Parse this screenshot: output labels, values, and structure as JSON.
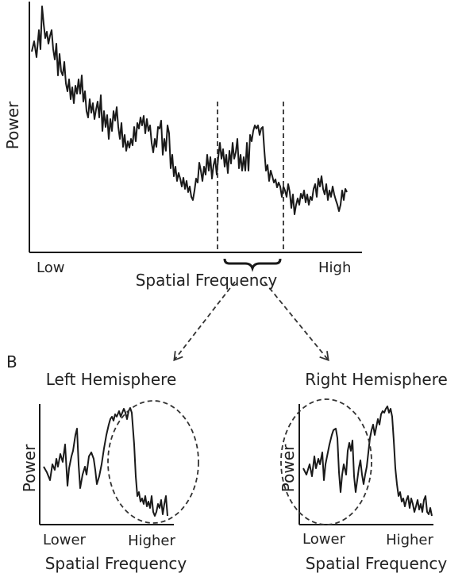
{
  "top_plot": {
    "ylabel": "Power",
    "xlabel": "Spatial Frequency",
    "x_low_label": "Low",
    "x_high_label": "High"
  },
  "panel_b": {
    "label": "B",
    "left": {
      "title": "Left Hemisphere",
      "ylabel": "Power",
      "xlabel": "Spatial Frequency",
      "x_low_label": "Lower",
      "x_high_label": "Higher"
    },
    "right": {
      "title": "Right Hemisphere",
      "ylabel": "Power",
      "xlabel": "Spatial Frequency",
      "x_low_label": "Lower",
      "x_high_label": "Higher"
    }
  },
  "colors": {
    "line": "#1a1a1a",
    "text": "#222222"
  }
}
